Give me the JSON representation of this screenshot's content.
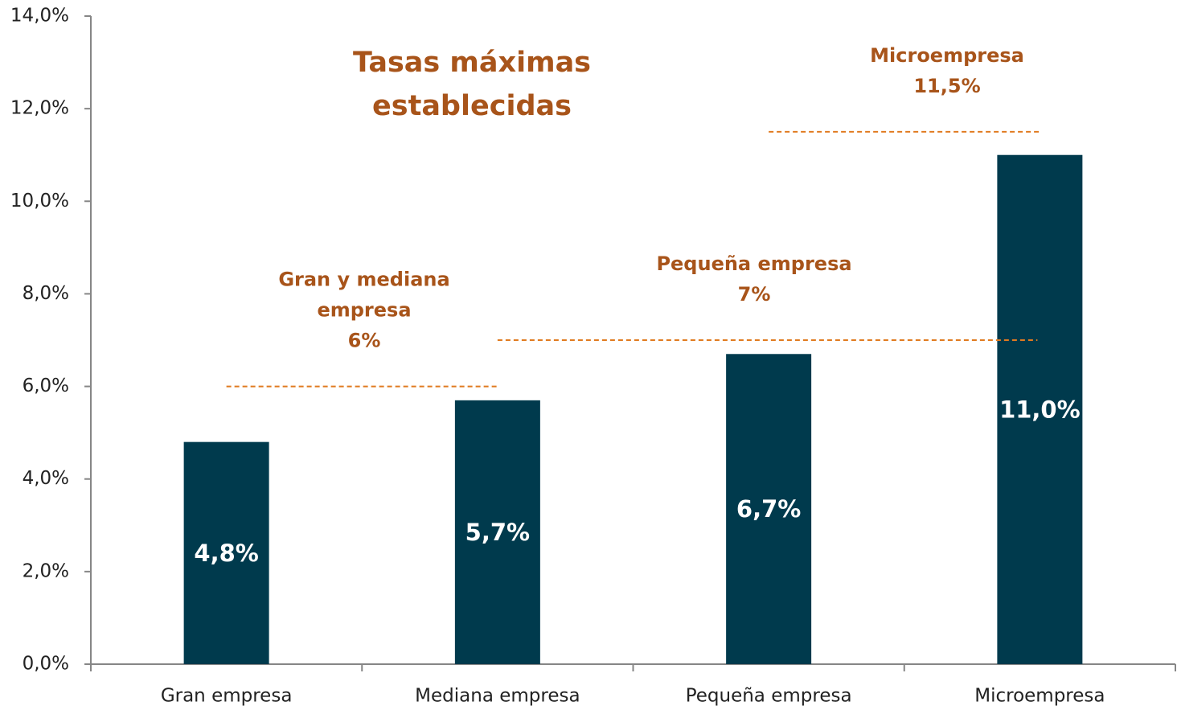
{
  "chart_data": {
    "type": "bar",
    "title_lines": [
      "Tasas máximas",
      "establecidas"
    ],
    "categories": [
      "Gran empresa",
      "Mediana empresa",
      "Pequeña empresa",
      "Microempresa"
    ],
    "values": [
      4.8,
      5.7,
      6.7,
      11.0
    ],
    "value_labels": [
      "4,8%",
      "5,7%",
      "6,7%",
      "11,0%"
    ],
    "color": "#003a4d",
    "ylim": [
      0,
      14
    ],
    "yticks": [
      {
        "value": 0,
        "label": "0,0%"
      },
      {
        "value": 2,
        "label": "2,0%"
      },
      {
        "value": 4,
        "label": "4,0%"
      },
      {
        "value": 6,
        "label": "6,0%"
      },
      {
        "value": 8,
        "label": "8,0%"
      },
      {
        "value": 10,
        "label": "10,0%"
      },
      {
        "value": 12,
        "label": "12,0%"
      },
      {
        "value": 14,
        "label": "14,0%"
      }
    ],
    "thresholds": [
      {
        "label_lines": [
          "Gran y mediana",
          "empresa"
        ],
        "value": 6,
        "value_label": "6%"
      },
      {
        "label_lines": [
          "Pequeña empresa"
        ],
        "value": 7,
        "value_label": "7%"
      },
      {
        "label_lines": [
          "Microempresa"
        ],
        "value": 11.5,
        "value_label": "11,5%"
      }
    ],
    "threshold_color": "#e07b20",
    "annotation_color": "#a8541a"
  }
}
